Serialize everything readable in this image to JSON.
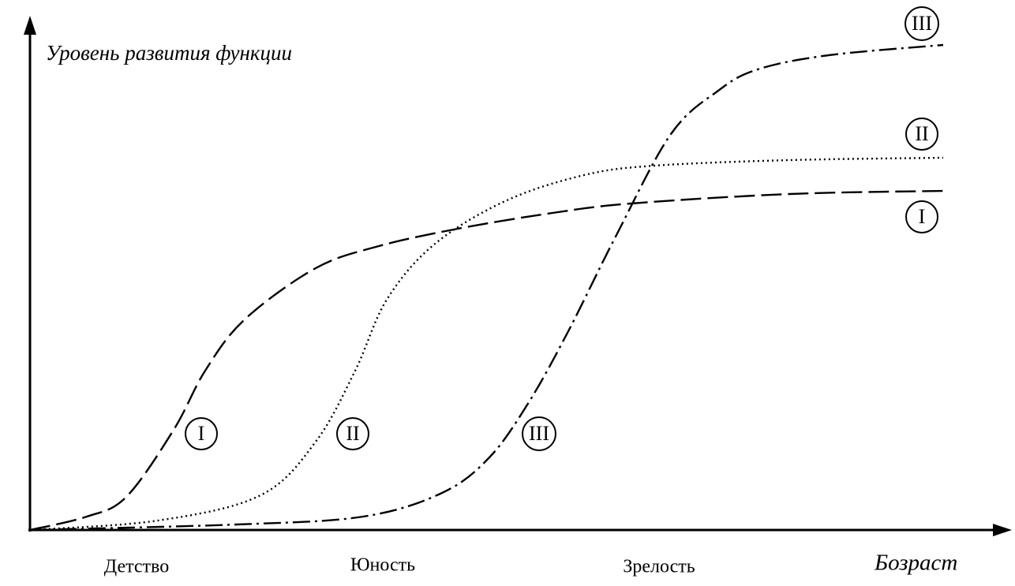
{
  "axes": {
    "y_label": "Уровень развития функции",
    "x_label": "Бозраст"
  },
  "stages": [
    "Детство",
    "Юность",
    "Зрелость"
  ],
  "curves": [
    {
      "label": "I"
    },
    {
      "label": "II"
    },
    {
      "label": "III"
    }
  ]
}
